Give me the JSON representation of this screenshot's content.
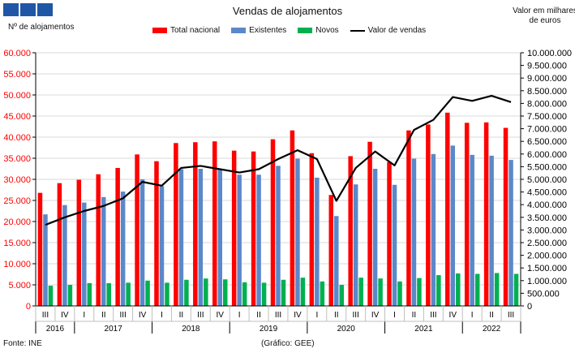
{
  "header": {
    "title": "Vendas de alojamentos",
    "source": "Fonte: INE",
    "credit": "(Gráfico: GEE)"
  },
  "chart_data": {
    "type": "bar",
    "title": "Vendas de alojamentos",
    "ylabel": "Nº de alojamentos",
    "y2label": "Valor em milhares de euros",
    "ylim": [
      0,
      60000
    ],
    "y2lim": [
      0,
      10000000
    ],
    "yticks": [
      "0",
      "5.000",
      "10.000",
      "15.000",
      "20.000",
      "25.000",
      "30.000",
      "35.000",
      "40.000",
      "45.000",
      "50.000",
      "55.000",
      "60.000"
    ],
    "y2ticks": [
      "0",
      "500.000",
      "1.000.000",
      "1.500.000",
      "2.000.000",
      "2.500.000",
      "3.000.000",
      "3.500.000",
      "4.000.000",
      "4.500.000",
      "5.000.000",
      "5.500.000",
      "6.000.000",
      "6.500.000",
      "7.000.000",
      "7.500.000",
      "8.000.000",
      "8.500.000",
      "9.000.000",
      "9.500.000",
      "10.000.000"
    ],
    "quarters": [
      "III",
      "IV",
      "I",
      "II",
      "III",
      "IV",
      "I",
      "II",
      "III",
      "IV",
      "I",
      "II",
      "III",
      "IV",
      "I",
      "II",
      "III",
      "IV",
      "I",
      "II",
      "III",
      "IV",
      "I",
      "II",
      "III"
    ],
    "years": [
      {
        "label": "2016",
        "count": 2
      },
      {
        "label": "2017",
        "count": 4
      },
      {
        "label": "2018",
        "count": 4
      },
      {
        "label": "2019",
        "count": 4
      },
      {
        "label": "2020",
        "count": 4
      },
      {
        "label": "2021",
        "count": 4
      },
      {
        "label": "2022",
        "count": 3
      }
    ],
    "legend_position": "top",
    "grid": true,
    "series": [
      {
        "name": "Total nacional",
        "kind": "bar",
        "axis": "left",
        "color": "#ff0000",
        "values": [
          26800,
          29100,
          29900,
          31200,
          32700,
          35900,
          34300,
          38600,
          38800,
          39000,
          36800,
          36600,
          39500,
          41600,
          36200,
          26300,
          35500,
          38900,
          34100,
          41600,
          43000,
          45800,
          43400,
          43500,
          42200
        ]
      },
      {
        "name": "Existentes",
        "kind": "bar",
        "axis": "left",
        "color": "#5b88c9",
        "values": [
          21700,
          23900,
          24500,
          25800,
          27100,
          30000,
          28400,
          32400,
          32500,
          32300,
          31100,
          31100,
          33200,
          34900,
          30400,
          21300,
          28800,
          32500,
          28700,
          34900,
          36000,
          38000,
          35800,
          35600,
          34600
        ]
      },
      {
        "name": "Novos",
        "kind": "bar",
        "axis": "left",
        "color": "#00b050",
        "values": [
          4800,
          5000,
          5400,
          5400,
          5500,
          6000,
          5500,
          6200,
          6500,
          6300,
          5600,
          5500,
          6200,
          6700,
          5800,
          5000,
          6700,
          6500,
          5800,
          6600,
          7300,
          7700,
          7600,
          7800,
          7600
        ]
      },
      {
        "name": "Valor de vendas",
        "kind": "line",
        "axis": "right",
        "color": "#000000",
        "values": [
          3200000,
          3500000,
          3750000,
          3950000,
          4250000,
          4900000,
          4750000,
          5450000,
          5530000,
          5400000,
          5270000,
          5400000,
          5800000,
          6150000,
          5800000,
          4150000,
          5450000,
          6100000,
          5550000,
          6950000,
          7350000,
          8250000,
          8100000,
          8300000,
          8050000
        ]
      }
    ]
  }
}
